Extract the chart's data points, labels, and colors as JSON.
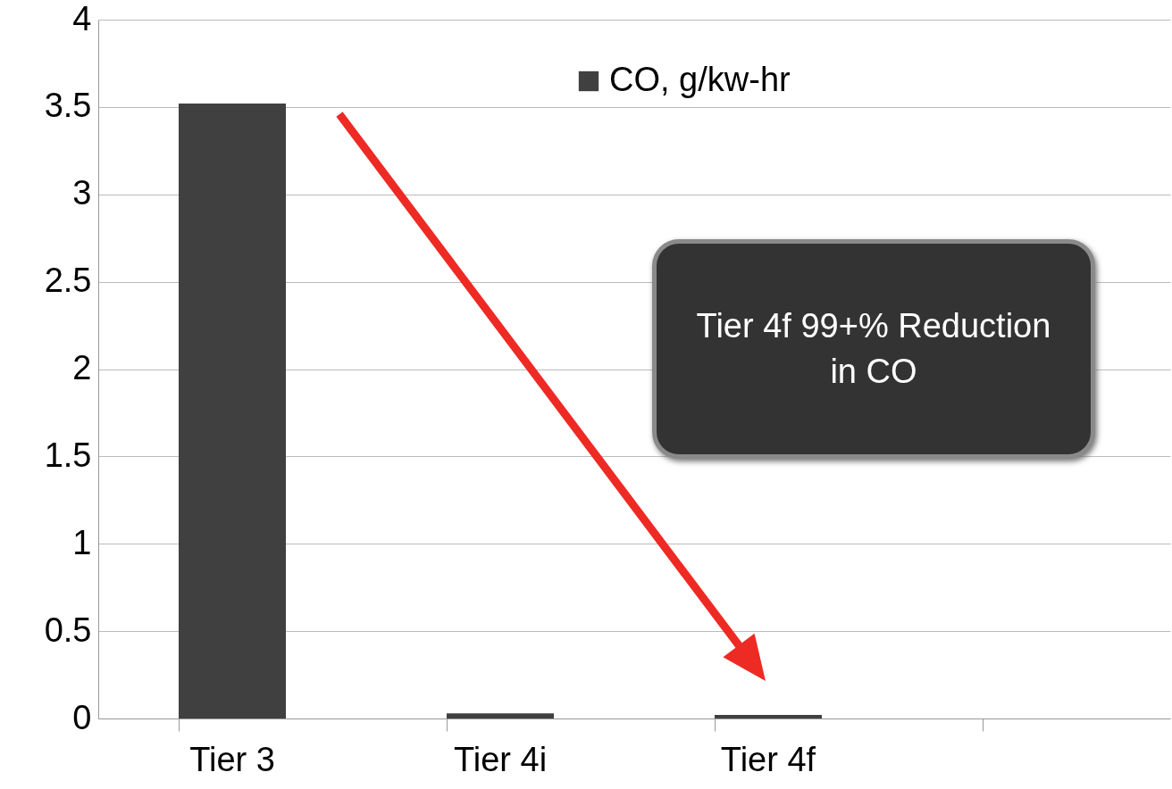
{
  "chart_data": {
    "type": "bar",
    "categories": [
      "Tier 3",
      "Tier 4i",
      "Tier 4f",
      null
    ],
    "series": [
      {
        "name": "CO, g/kw-hr",
        "color": "#404040",
        "values": [
          3.52,
          0.03,
          0.02,
          null
        ]
      }
    ],
    "ylim": [
      0,
      4
    ],
    "yticks": [
      0,
      0.5,
      1,
      1.5,
      2,
      2.5,
      3,
      3.5,
      4
    ],
    "grid": "y",
    "legend": "top",
    "annotations": [
      "Tier 4f 99+% Reduction in CO"
    ]
  }
}
